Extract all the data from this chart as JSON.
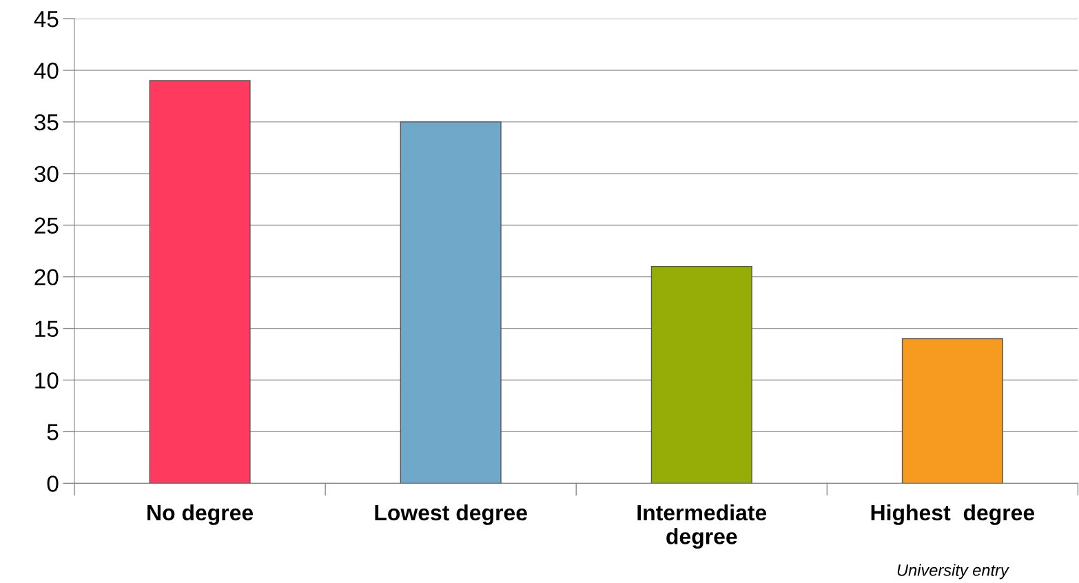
{
  "chart_data": {
    "type": "bar",
    "categories": [
      "No degree",
      "Lowest degree",
      "Intermediate\ndegree",
      "Highest  degree"
    ],
    "values": [
      39,
      35,
      21,
      14
    ],
    "colors": [
      "#fe3a5e",
      "#6fa8c8",
      "#95ad06",
      "#f79a20"
    ],
    "ylim": [
      0,
      45
    ],
    "yticks": [
      0,
      5,
      10,
      15,
      20,
      25,
      30,
      35,
      40,
      45
    ],
    "grid": "y",
    "annotations": [
      "University entry"
    ]
  }
}
